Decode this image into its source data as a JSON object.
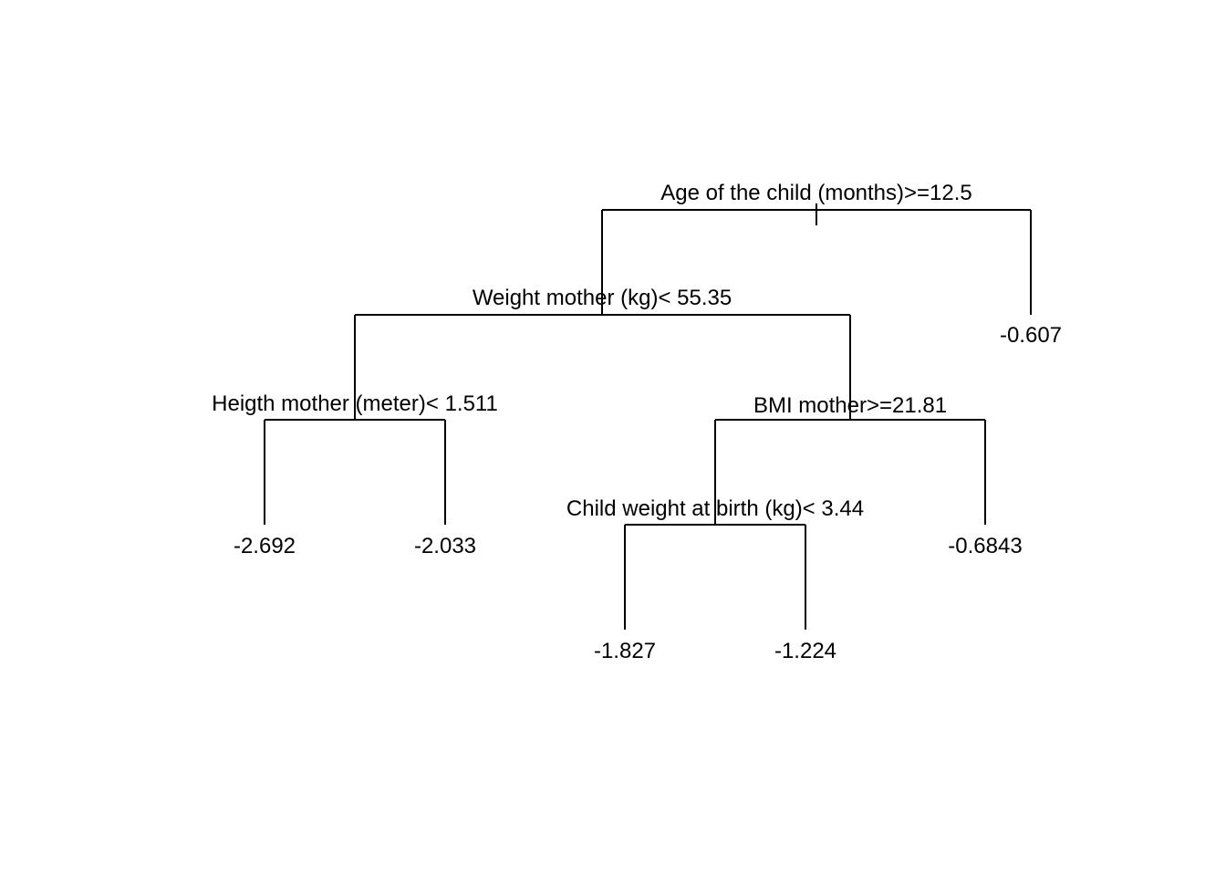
{
  "tree": {
    "root_split": "Age of the child (months)>=12.5",
    "left_split": "Weight mother (kg)< 55.35",
    "left_left_split": "Heigth mother (meter)< 1.511",
    "left_right_split": "BMI mother>=21.81",
    "lrl_split": "Child weight at birth (kg)< 3.44",
    "leaves": {
      "l1": "-2.692",
      "l2": "-2.033",
      "l3": "-1.827",
      "l4": "-1.224",
      "l5": "-0.6843",
      "l6": "-0.607"
    }
  }
}
